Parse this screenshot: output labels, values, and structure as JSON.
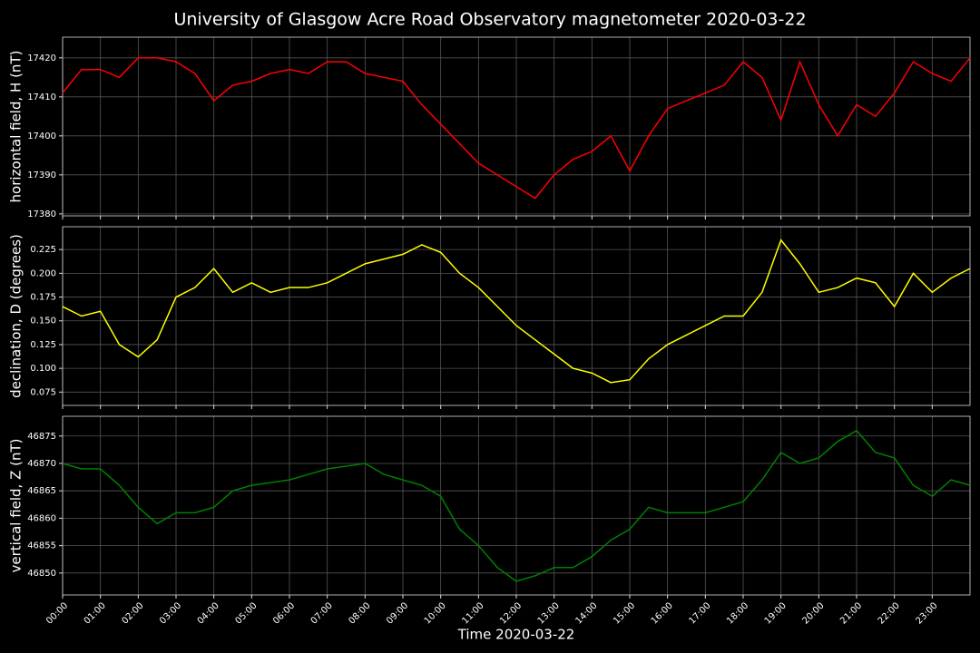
{
  "title": "University of Glasgow Acre Road Observatory magnetometer 2020-03-22",
  "chart_data": [
    {
      "type": "line",
      "ylabel": "horizontal field, H (nT)",
      "grid": true,
      "x": [
        0,
        0.5,
        1,
        1.5,
        2,
        2.5,
        3,
        3.5,
        4,
        4.5,
        5,
        5.5,
        6,
        6.5,
        7,
        7.5,
        8,
        8.5,
        9,
        9.5,
        10,
        10.5,
        11,
        11.5,
        12,
        12.5,
        13,
        13.5,
        14,
        14.5,
        15,
        15.5,
        16,
        16.5,
        17,
        17.5,
        18,
        18.5,
        19,
        19.5,
        20,
        20.5,
        21,
        21.5,
        22,
        22.5,
        23,
        23.5,
        24
      ],
      "xlim": [
        0,
        24
      ],
      "xticks": [
        0,
        1,
        2,
        3,
        4,
        5,
        6,
        7,
        8,
        9,
        10,
        11,
        12,
        13,
        14,
        15,
        16,
        17,
        18,
        19,
        20,
        21,
        22,
        23
      ],
      "ylim": [
        17379.5,
        17425.3
      ],
      "yticks": [
        17380,
        17390,
        17400,
        17410,
        17420
      ],
      "series": [
        {
          "color": "#ff0000",
          "values": [
            17411,
            17417,
            17417,
            17415,
            17420,
            17420,
            17419,
            17416,
            17409,
            17413,
            17414,
            17416,
            17417,
            17416,
            17419,
            17419,
            17416,
            17415,
            17414,
            17408,
            17403,
            17398,
            17393,
            17390,
            17387,
            17384,
            17390,
            17394,
            17396,
            17400,
            17391,
            17400,
            17407,
            17409,
            17411,
            17413,
            17419,
            17415,
            17404,
            17419,
            17408,
            17400,
            17408,
            17405,
            17411,
            17419,
            17416,
            17414,
            17420
          ]
        }
      ]
    },
    {
      "type": "line",
      "ylabel": "declination, D (degrees)",
      "grid": true,
      "x": [
        0,
        0.5,
        1,
        1.5,
        2,
        2.5,
        3,
        3.5,
        4,
        4.5,
        5,
        5.5,
        6,
        6.5,
        7,
        7.5,
        8,
        8.5,
        9,
        9.5,
        10,
        10.5,
        11,
        11.5,
        12,
        12.5,
        13,
        13.5,
        14,
        14.5,
        15,
        15.5,
        16,
        16.5,
        17,
        17.5,
        18,
        18.5,
        19,
        19.5,
        20,
        20.5,
        21,
        21.5,
        22,
        22.5,
        23,
        23.5,
        24
      ],
      "xlim": [
        0,
        24
      ],
      "xticks": [
        0,
        1,
        2,
        3,
        4,
        5,
        6,
        7,
        8,
        9,
        10,
        11,
        12,
        13,
        14,
        15,
        16,
        17,
        18,
        19,
        20,
        21,
        22,
        23
      ],
      "ylim": [
        0.061,
        0.249
      ],
      "yticks": [
        0.075,
        {
          "value": 0.1,
          "label": "0.100"
        },
        0.125,
        {
          "value": 0.15,
          "label": "0.150"
        },
        0.175,
        {
          "value": 0.2,
          "label": "0.200"
        },
        0.225
      ],
      "series": [
        {
          "color": "#ffff00",
          "values": [
            0.165,
            0.155,
            0.16,
            0.125,
            0.112,
            0.13,
            0.175,
            0.185,
            0.205,
            0.18,
            0.19,
            0.18,
            0.185,
            0.185,
            0.19,
            0.2,
            0.21,
            0.215,
            0.22,
            0.23,
            0.222,
            0.2,
            0.185,
            0.165,
            0.145,
            0.13,
            0.115,
            0.1,
            0.095,
            0.085,
            0.088,
            0.11,
            0.125,
            0.135,
            0.145,
            0.155,
            0.155,
            0.18,
            0.235,
            0.21,
            0.18,
            0.185,
            0.195,
            0.19,
            0.165,
            0.2,
            0.18,
            0.195,
            0.205
          ]
        }
      ]
    },
    {
      "type": "line",
      "ylabel": "vertical field, Z (nT)",
      "xlabel": "Time 2020-03-22",
      "grid": true,
      "x": [
        0,
        0.5,
        1,
        1.5,
        2,
        2.5,
        3,
        3.5,
        4,
        4.5,
        5,
        5.5,
        6,
        6.5,
        7,
        7.5,
        8,
        8.5,
        9,
        9.5,
        10,
        10.5,
        11,
        11.5,
        12,
        12.5,
        13,
        13.5,
        14,
        14.5,
        15,
        15.5,
        16,
        16.5,
        17,
        17.5,
        18,
        18.5,
        19,
        19.5,
        20,
        20.5,
        21,
        21.5,
        22,
        22.5,
        23,
        23.5,
        24
      ],
      "xlim": [
        0,
        24
      ],
      "xticks": [
        {
          "value": 0,
          "label": "00:00"
        },
        {
          "value": 1,
          "label": "01:00"
        },
        {
          "value": 2,
          "label": "02:00"
        },
        {
          "value": 3,
          "label": "03:00"
        },
        {
          "value": 4,
          "label": "04:00"
        },
        {
          "value": 5,
          "label": "05:00"
        },
        {
          "value": 6,
          "label": "06:00"
        },
        {
          "value": 7,
          "label": "07:00"
        },
        {
          "value": 8,
          "label": "08:00"
        },
        {
          "value": 9,
          "label": "09:00"
        },
        {
          "value": 10,
          "label": "10:00"
        },
        {
          "value": 11,
          "label": "11:00"
        },
        {
          "value": 12,
          "label": "12:00"
        },
        {
          "value": 13,
          "label": "13:00"
        },
        {
          "value": 14,
          "label": "14:00"
        },
        {
          "value": 15,
          "label": "15:00"
        },
        {
          "value": 16,
          "label": "16:00"
        },
        {
          "value": 17,
          "label": "17:00"
        },
        {
          "value": 18,
          "label": "18:00"
        },
        {
          "value": 19,
          "label": "19:00"
        },
        {
          "value": 20,
          "label": "20:00"
        },
        {
          "value": 21,
          "label": "21:00"
        },
        {
          "value": 22,
          "label": "22:00"
        },
        {
          "value": 23,
          "label": "23:00"
        }
      ],
      "ylim": [
        46846,
        46878.6
      ],
      "yticks": [
        46850,
        46855,
        46860,
        46865,
        46870,
        46875
      ],
      "series": [
        {
          "color": "#008000",
          "values": [
            46870,
            46869,
            46869,
            46866,
            46862,
            46859,
            46861,
            46861,
            46862,
            46865,
            46866,
            46866.5,
            46867,
            46868,
            46869,
            46869.5,
            46870,
            46868,
            46867,
            46866,
            46864,
            46858,
            46855,
            46851,
            46848.5,
            46849.5,
            46851,
            46851,
            46853,
            46856,
            46858,
            46862,
            46861,
            46861,
            46861,
            46862,
            46863,
            46867,
            46872,
            46870,
            46871,
            46874,
            46876,
            46872,
            46871,
            46866,
            46864,
            46867,
            46866
          ]
        }
      ]
    }
  ]
}
